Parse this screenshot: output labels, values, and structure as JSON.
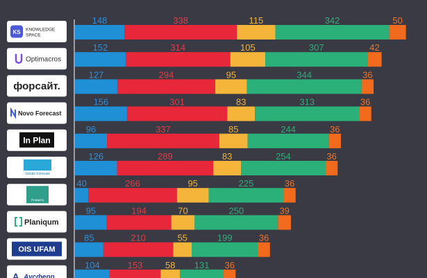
{
  "chart_data": {
    "type": "bar",
    "orientation": "horizontal",
    "stacked": true,
    "categories": [
      "KNOWLEDGE SPACE",
      "Optimacros",
      "форсайт.",
      "Novo Forecast",
      "In Plan",
      "Goods Forecast",
      "Пламета",
      "Planiqum",
      "OIS UFAM",
      "Аусферр"
    ],
    "series": [
      {
        "color": "#1f8fd6",
        "values": [
          148,
          152,
          127,
          156,
          96,
          126,
          40,
          95,
          85,
          104
        ]
      },
      {
        "color": "#e8283a",
        "values": [
          338,
          314,
          294,
          301,
          337,
          289,
          266,
          194,
          210,
          153
        ]
      },
      {
        "color": "#f5b43a",
        "values": [
          115,
          105,
          95,
          83,
          85,
          83,
          95,
          70,
          55,
          58
        ]
      },
      {
        "color": "#2bb07a",
        "values": [
          342,
          307,
          344,
          313,
          244,
          254,
          225,
          250,
          199,
          131
        ]
      },
      {
        "color": "#f26a1b",
        "values": [
          50,
          42,
          36,
          36,
          36,
          36,
          36,
          39,
          36,
          36
        ]
      }
    ],
    "label_colors": [
      "#2f8fd8",
      "#e23b46",
      "#f0b43c",
      "#2fae78",
      "#f07428"
    ],
    "grid": false,
    "legend": "none"
  },
  "logos": [
    {
      "text": "KNOWLEDGE SPACE",
      "line1": "KNOWLEDGE",
      "line2": "SPACE",
      "badge": "KS",
      "icon": "ks-badge-icon"
    },
    {
      "text": "Optimacros",
      "icon": "optimacros-u-icon"
    },
    {
      "text": "форсайт."
    },
    {
      "text": "Novo Forecast",
      "icon": "novo-n-icon"
    },
    {
      "text": "In Plan"
    },
    {
      "text": "Goods Forecast"
    },
    {
      "text": "Пламета",
      "icon": "planeta-hand-icon"
    },
    {
      "text": "Planiqum",
      "icon": "bracket-icon"
    },
    {
      "text": "OIS UFAM"
    },
    {
      "text": "Аусферр",
      "icon": "af-icon"
    }
  ]
}
